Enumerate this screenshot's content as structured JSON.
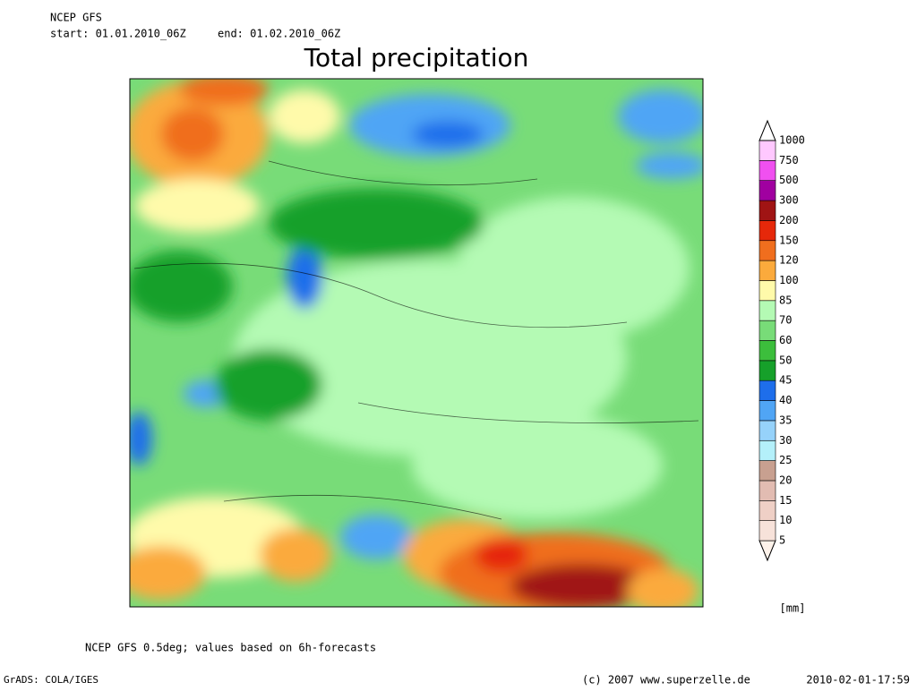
{
  "header": {
    "model": "NCEP GFS",
    "start": "start: 01.01.2010_06Z",
    "end": "end: 01.02.2010_06Z",
    "title": "Total precipitation"
  },
  "colorbar": {
    "unit": "[mm]",
    "levels": [
      5,
      10,
      15,
      20,
      25,
      30,
      35,
      40,
      45,
      50,
      60,
      70,
      85,
      100,
      120,
      150,
      200,
      300,
      500,
      750,
      1000
    ],
    "colors": [
      "#fdf2ea",
      "#f7e2da",
      "#efd0c6",
      "#e2bcb2",
      "#c8a090",
      "#b4f0fa",
      "#96d2fa",
      "#50a5f5",
      "#1e6eeb",
      "#16a02a",
      "#3cbe3c",
      "#78dc78",
      "#b4fab4",
      "#fffaaa",
      "#fbaa3c",
      "#f06e1e",
      "#e6280a",
      "#a01414",
      "#a000a0",
      "#f050f0",
      "#ffc8ff",
      "#ffffff"
    ]
  },
  "footer": {
    "note": "NCEP GFS 0.5deg; values based on 6h-forecasts",
    "software": "GrADS: COLA/IGES",
    "copyright": "(c) 2007 www.superzelle.de",
    "timestamp": "2010-02-01-17:59"
  }
}
